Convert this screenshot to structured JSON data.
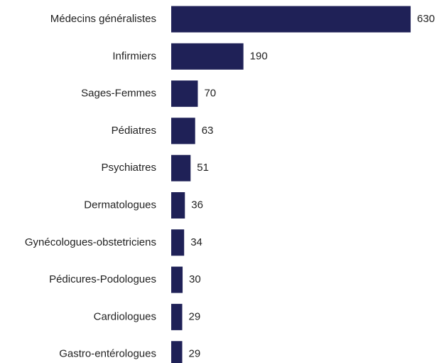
{
  "chart_data": {
    "type": "bar",
    "orientation": "horizontal",
    "categories": [
      "Médecins généralistes",
      "Infirmiers",
      "Sages-Femmes",
      "Pédiatres",
      "Psychiatres",
      "Dermatologues",
      "Gynécologues-obstetriciens",
      "Pédicures-Podologues",
      "Cardiologues",
      "Gastro-entérologues"
    ],
    "values": [
      630,
      190,
      70,
      63,
      51,
      36,
      34,
      30,
      29,
      29
    ],
    "color": "#1f2157"
  }
}
